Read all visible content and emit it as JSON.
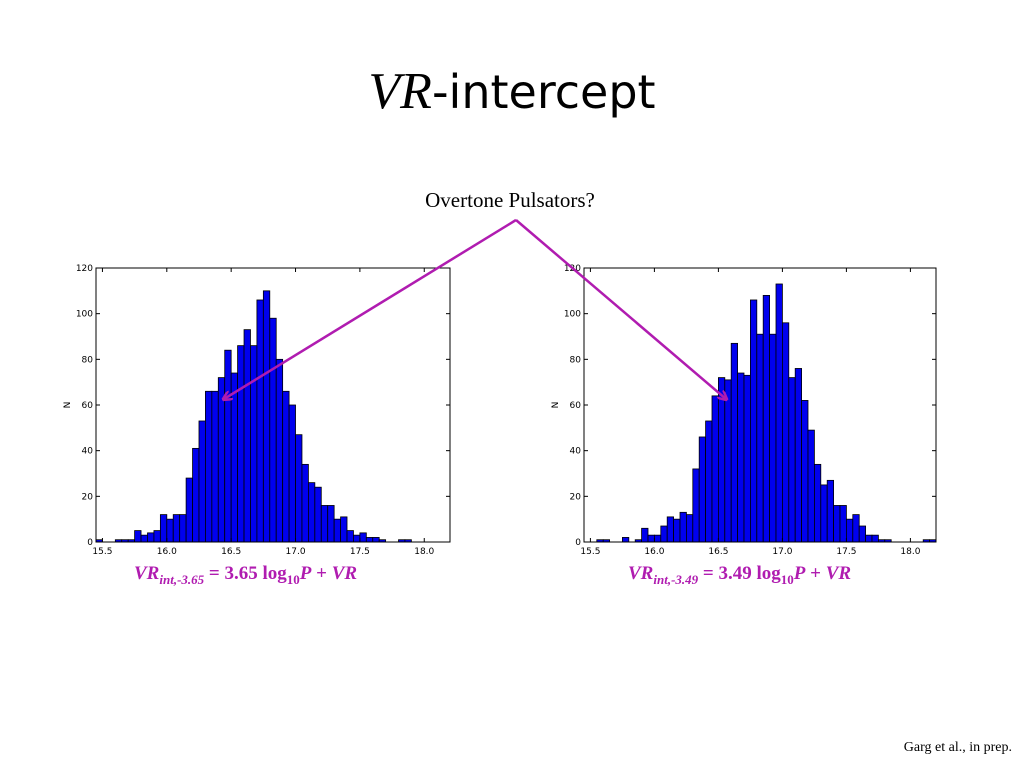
{
  "slide": {
    "title_italic": "VR",
    "title_rest": "-intercept",
    "annotation": "Overtone Pulsators?",
    "citation": "Garg et al., in prep.",
    "accent_color": "#b01cb0",
    "bar_color": "#0000ee"
  },
  "formulas": [
    {
      "lhs": "VR",
      "sub": "int,-3.65",
      "eq": " = 3.65 log",
      "sub2": "10",
      "p": "P",
      "plus": " + ",
      "vr": "VR"
    },
    {
      "lhs": "VR",
      "sub": "int,-3.49",
      "eq": " = 3.49 log",
      "sub2": "10",
      "p": "P",
      "plus": " + ",
      "vr": "VR"
    }
  ],
  "chart_data": [
    {
      "type": "bar",
      "ylabel": "N",
      "xlabel": "",
      "xlim": [
        15.45,
        18.2
      ],
      "ylim": [
        0,
        120
      ],
      "xticks": [
        "15.5",
        "16.0",
        "16.5",
        "17.0",
        "17.5",
        "18.0"
      ],
      "yticks": [
        "0",
        "20",
        "40",
        "60",
        "80",
        "100",
        "120"
      ],
      "bin_width": 0.05,
      "x_start": 15.45,
      "values": [
        1,
        0,
        0,
        1,
        1,
        1,
        5,
        3,
        4,
        5,
        12,
        10,
        12,
        12,
        28,
        41,
        53,
        66,
        66,
        72,
        84,
        74,
        86,
        93,
        86,
        106,
        110,
        98,
        80,
        66,
        60,
        47,
        34,
        26,
        24,
        16,
        16,
        10,
        11,
        5,
        3,
        4,
        2,
        2,
        1,
        0,
        0,
        1,
        1,
        0,
        0,
        0,
        0,
        0,
        0
      ]
    },
    {
      "type": "bar",
      "ylabel": "N",
      "xlabel": "",
      "xlim": [
        15.45,
        18.2
      ],
      "ylim": [
        0,
        120
      ],
      "xticks": [
        "15.5",
        "16.0",
        "16.5",
        "17.0",
        "17.5",
        "18.0"
      ],
      "yticks": [
        "0",
        "20",
        "40",
        "60",
        "80",
        "100",
        "120"
      ],
      "bin_width": 0.05,
      "x_start": 15.45,
      "values": [
        0,
        0,
        1,
        1,
        0,
        0,
        2,
        0,
        1,
        6,
        3,
        3,
        7,
        11,
        10,
        13,
        12,
        32,
        46,
        53,
        64,
        72,
        71,
        87,
        74,
        73,
        106,
        91,
        108,
        91,
        113,
        96,
        72,
        76,
        62,
        49,
        34,
        25,
        27,
        16,
        16,
        10,
        12,
        7,
        3,
        3,
        1,
        1,
        0,
        0,
        0,
        0,
        0,
        1,
        1
      ]
    }
  ]
}
